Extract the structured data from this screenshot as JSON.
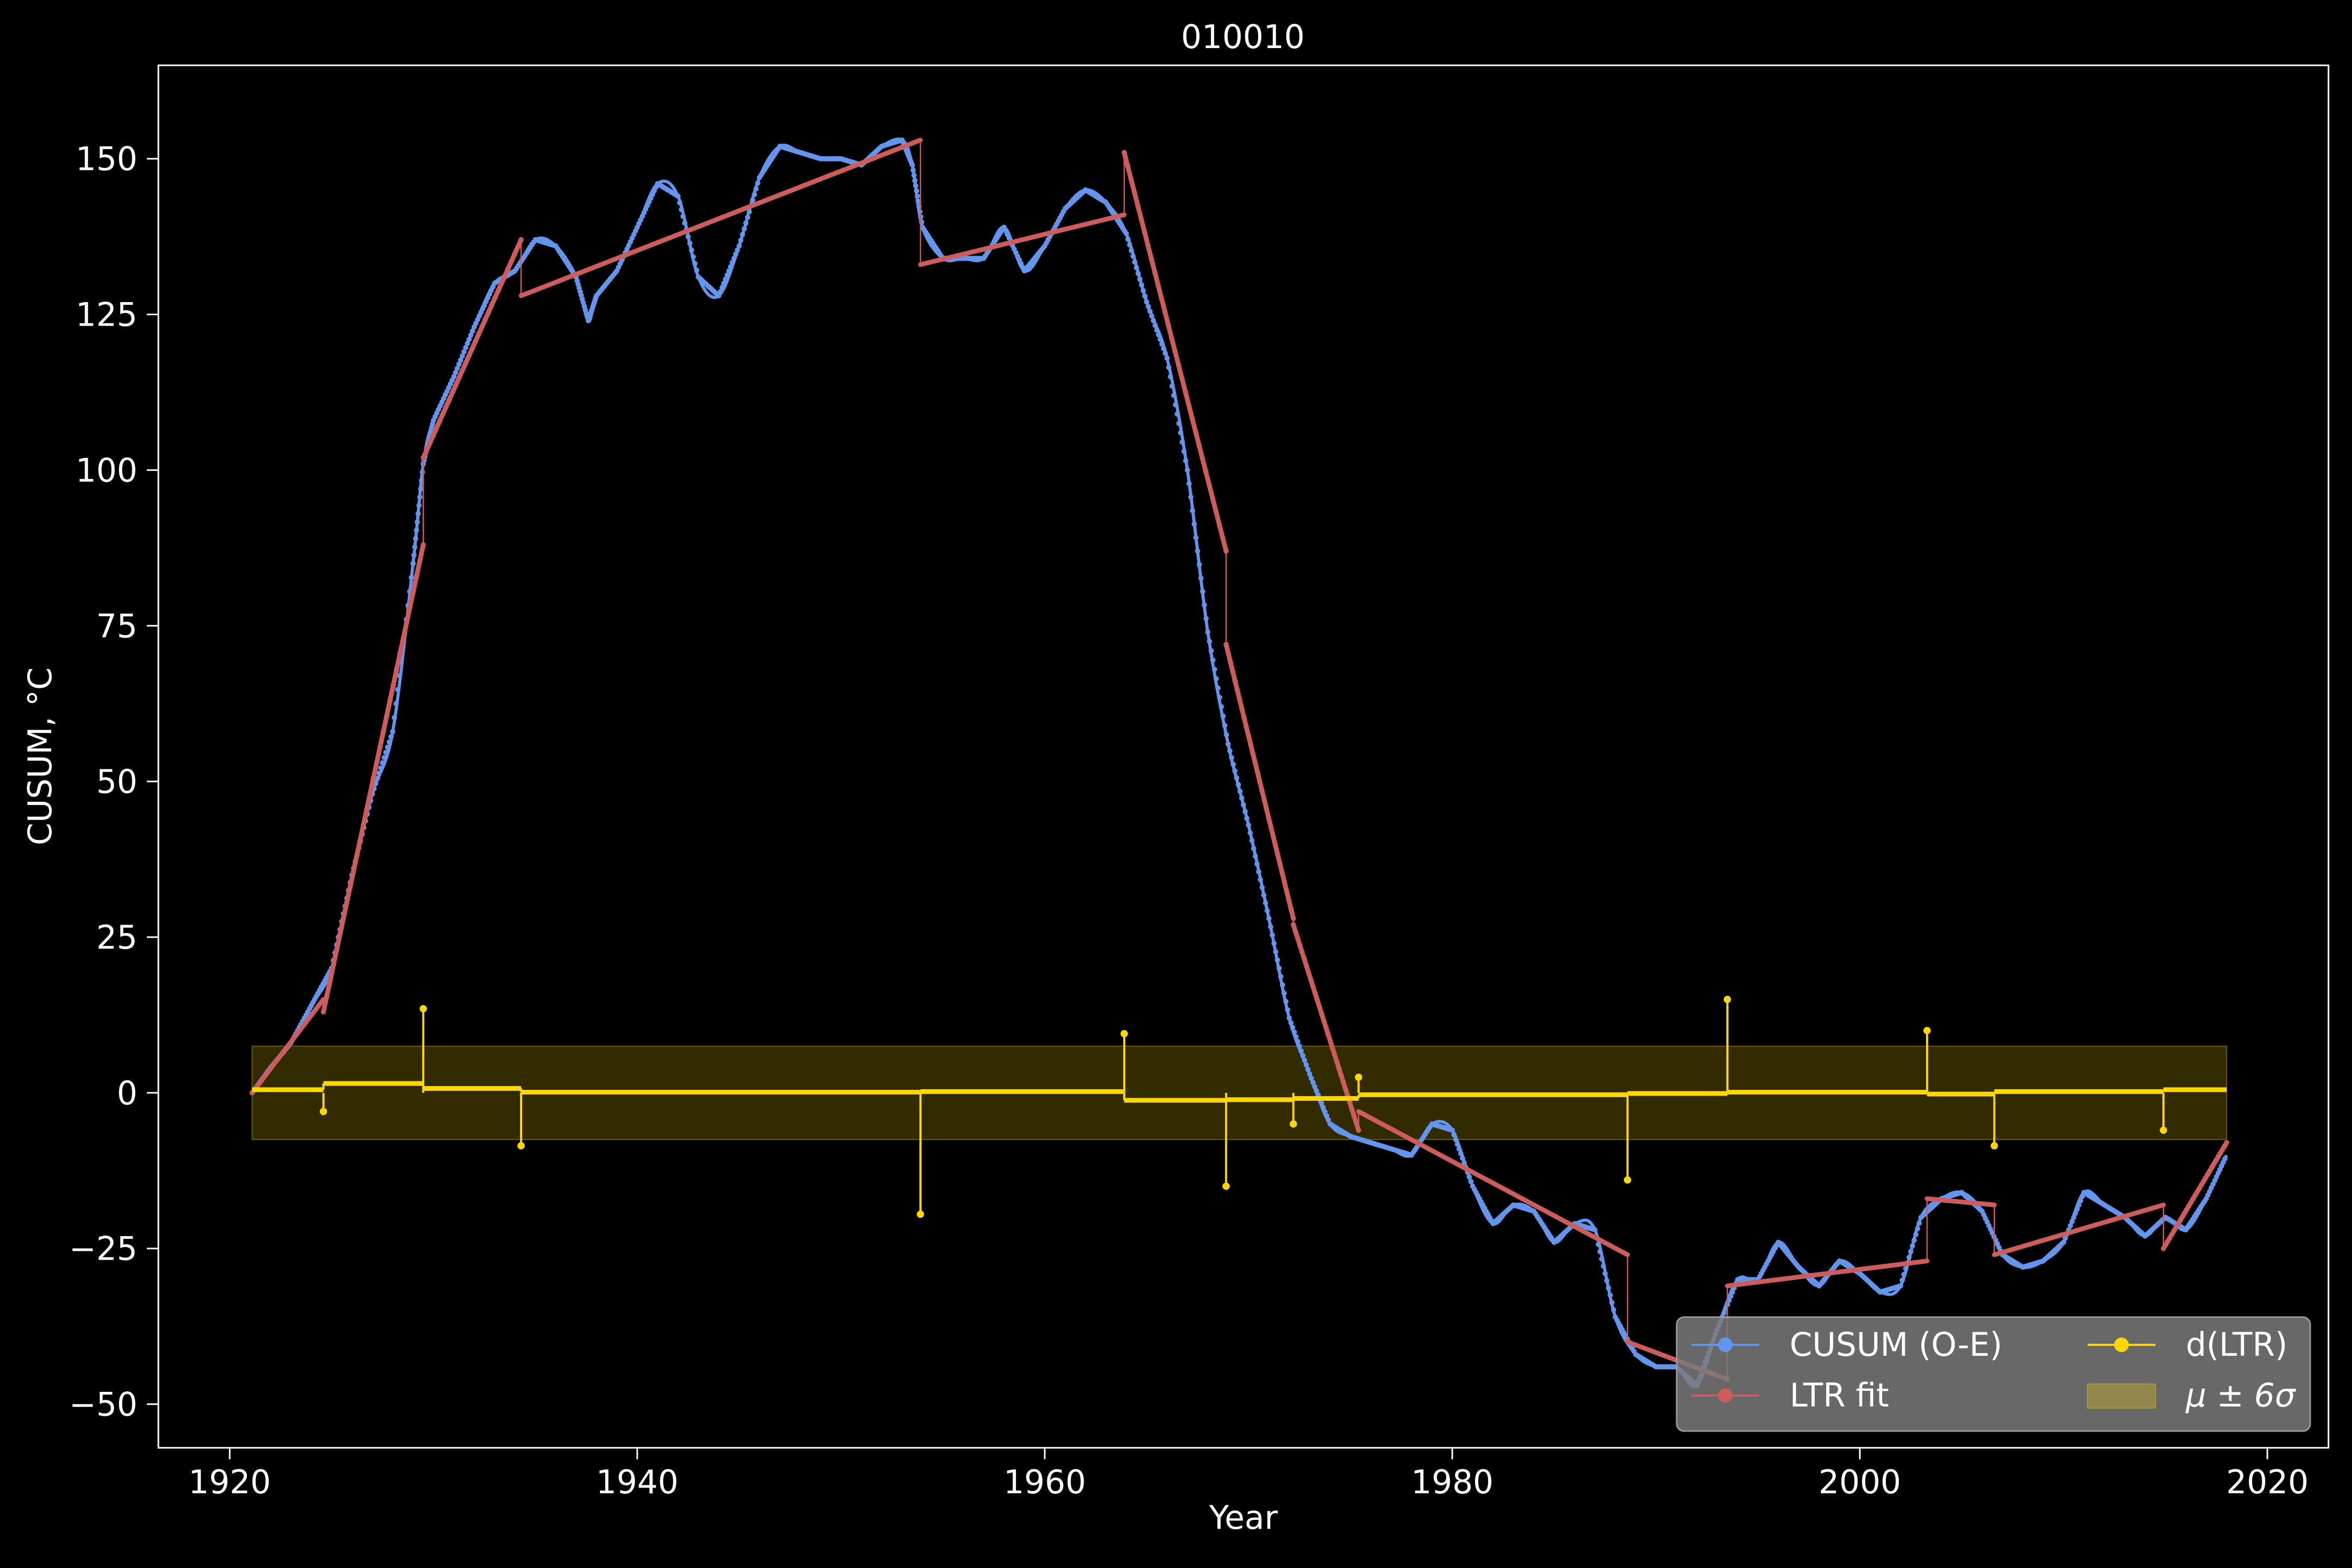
{
  "chart_data": {
    "type": "line",
    "title": "010010",
    "xlabel": "Year",
    "ylabel": "CUSUM, °C",
    "xlim": [
      1916.5,
      2023
    ],
    "ylim": [
      -57,
      165
    ],
    "x_ticks": [
      1920,
      1940,
      1960,
      1980,
      2000,
      2020
    ],
    "y_ticks": [
      -50,
      -25,
      0,
      25,
      50,
      75,
      100,
      125,
      150
    ],
    "grid": false,
    "legend_position": "lower-right",
    "colors": {
      "background": "#000000",
      "cusum": "#6495ED",
      "ltr_fit": "#CD5C5C",
      "d_ltr": "#FFD700",
      "band": "#FFD700"
    },
    "series": [
      {
        "name": "CUSUM (O-E)",
        "x": [
          1921.1,
          1922,
          1923,
          1924,
          1925,
          1926,
          1927,
          1928,
          1929,
          1929.5,
          1930,
          1931,
          1932,
          1933,
          1934,
          1935,
          1936,
          1937,
          1937.6,
          1938,
          1939,
          1940,
          1941,
          1942,
          1943,
          1944,
          1945,
          1946,
          1947,
          1948,
          1949,
          1950,
          1951,
          1952,
          1953,
          1953.5,
          1954,
          1955,
          1956,
          1957,
          1958,
          1959,
          1960,
          1961,
          1962,
          1963,
          1964,
          1965,
          1966,
          1967,
          1968,
          1969,
          1970,
          1971,
          1972,
          1973,
          1974,
          1975,
          1976,
          1977,
          1978,
          1979,
          1980,
          1981,
          1982,
          1983,
          1984,
          1985,
          1986,
          1987,
          1988,
          1989,
          1990,
          1991,
          1992,
          1993,
          1994,
          1995,
          1996,
          1997,
          1998,
          1999,
          2000,
          2001,
          2002,
          2003,
          2004,
          2005,
          2006,
          2007,
          2008,
          2009,
          2010,
          2011,
          2012,
          2013,
          2014,
          2015,
          2016,
          2017,
          2018
        ],
        "y": [
          0,
          4,
          8,
          14,
          20,
          35,
          48,
          58,
          85,
          101,
          108,
          115,
          123,
          130,
          132,
          137,
          136,
          131,
          124,
          128,
          132,
          139,
          146,
          144,
          131,
          128,
          136,
          147,
          152,
          151,
          150,
          150,
          149,
          152,
          153,
          149,
          139,
          134,
          134,
          134,
          139,
          132,
          136,
          142,
          145,
          143,
          138,
          127,
          118,
          100,
          74,
          56,
          43,
          28,
          12,
          3,
          -5,
          -7,
          -8,
          -9,
          -10,
          -5,
          -6,
          -15,
          -21,
          -18,
          -19,
          -24,
          -21,
          -22,
          -36,
          -42,
          -44,
          -44,
          -47,
          -38,
          -30,
          -30,
          -24,
          -28,
          -31,
          -27,
          -29,
          -32,
          -31,
          -20,
          -17,
          -16,
          -19,
          -26,
          -28,
          -27,
          -24,
          -16,
          -18,
          -20,
          -23,
          -20,
          -22,
          -17,
          -10
        ],
        "markers": true
      },
      {
        "name": "LTR fit",
        "segments": [
          {
            "x": [
              1921.1,
              1924.6
            ],
            "y": [
              0,
              15
            ]
          },
          {
            "x": [
              1924.6,
              1929.5
            ],
            "y": [
              13,
              88
            ]
          },
          {
            "x": [
              1929.5,
              1934.3
            ],
            "y": [
              102,
              137
            ]
          },
          {
            "x": [
              1934.3,
              1953.9
            ],
            "y": [
              128,
              153
            ]
          },
          {
            "x": [
              1953.9,
              1963.9
            ],
            "y": [
              133,
              141
            ]
          },
          {
            "x": [
              1963.9,
              1968.9
            ],
            "y": [
              151,
              87
            ]
          },
          {
            "x": [
              1968.9,
              1972.2
            ],
            "y": [
              72,
              28
            ]
          },
          {
            "x": [
              1972.2,
              1975.4
            ],
            "y": [
              27,
              -6
            ]
          },
          {
            "x": [
              1975.4,
              1988.6
            ],
            "y": [
              -3,
              -26
            ]
          },
          {
            "x": [
              1988.6,
              1993.5
            ],
            "y": [
              -40,
              -46
            ]
          },
          {
            "x": [
              1993.5,
              2003.3
            ],
            "y": [
              -31,
              -27
            ]
          },
          {
            "x": [
              2003.3,
              2006.6
            ],
            "y": [
              -17,
              -18
            ]
          },
          {
            "x": [
              2006.6,
              2014.9
            ],
            "y": [
              -26,
              -18
            ]
          },
          {
            "x": [
              2014.9,
              2018
            ],
            "y": [
              -25,
              -8
            ]
          }
        ]
      },
      {
        "name": "d(LTR)",
        "steps": [
          {
            "x": [
              1921.1,
              1924.6
            ],
            "y": 0.5
          },
          {
            "x": [
              1924.6,
              1929.5
            ],
            "y": 1.5
          },
          {
            "x": [
              1929.5,
              1934.3
            ],
            "y": 0.7
          },
          {
            "x": [
              1934.3,
              1953.9
            ],
            "y": 0.1
          },
          {
            "x": [
              1953.9,
              1963.9
            ],
            "y": 0.2
          },
          {
            "x": [
              1963.9,
              1968.9
            ],
            "y": -1.2
          },
          {
            "x": [
              1968.9,
              1972.2
            ],
            "y": -1.1
          },
          {
            "x": [
              1972.2,
              1975.4
            ],
            "y": -0.9
          },
          {
            "x": [
              1975.4,
              1988.6
            ],
            "y": -0.3
          },
          {
            "x": [
              1988.6,
              1993.5
            ],
            "y": -0.1
          },
          {
            "x": [
              1993.5,
              2003.3
            ],
            "y": 0.1
          },
          {
            "x": [
              2003.3,
              2006.6
            ],
            "y": -0.2
          },
          {
            "x": [
              2006.6,
              2014.9
            ],
            "y": 0.2
          },
          {
            "x": [
              2014.9,
              2018
            ],
            "y": 0.5
          }
        ],
        "spikes": [
          {
            "x": 1924.6,
            "y": -3
          },
          {
            "x": 1929.5,
            "y": 13.5
          },
          {
            "x": 1934.3,
            "y": -8.5
          },
          {
            "x": 1953.9,
            "y": -19.5
          },
          {
            "x": 1963.9,
            "y": 9.5
          },
          {
            "x": 1968.9,
            "y": -15
          },
          {
            "x": 1972.2,
            "y": -5
          },
          {
            "x": 1975.4,
            "y": 2.5
          },
          {
            "x": 1988.6,
            "y": -14
          },
          {
            "x": 1993.5,
            "y": 15
          },
          {
            "x": 2003.3,
            "y": 10
          },
          {
            "x": 2006.6,
            "y": -8.5
          },
          {
            "x": 2014.9,
            "y": -6
          }
        ]
      },
      {
        "name": "μ ± 6σ",
        "band": {
          "x": [
            1921.1,
            2018
          ],
          "y": [
            -7.5,
            7.5
          ]
        }
      }
    ]
  }
}
